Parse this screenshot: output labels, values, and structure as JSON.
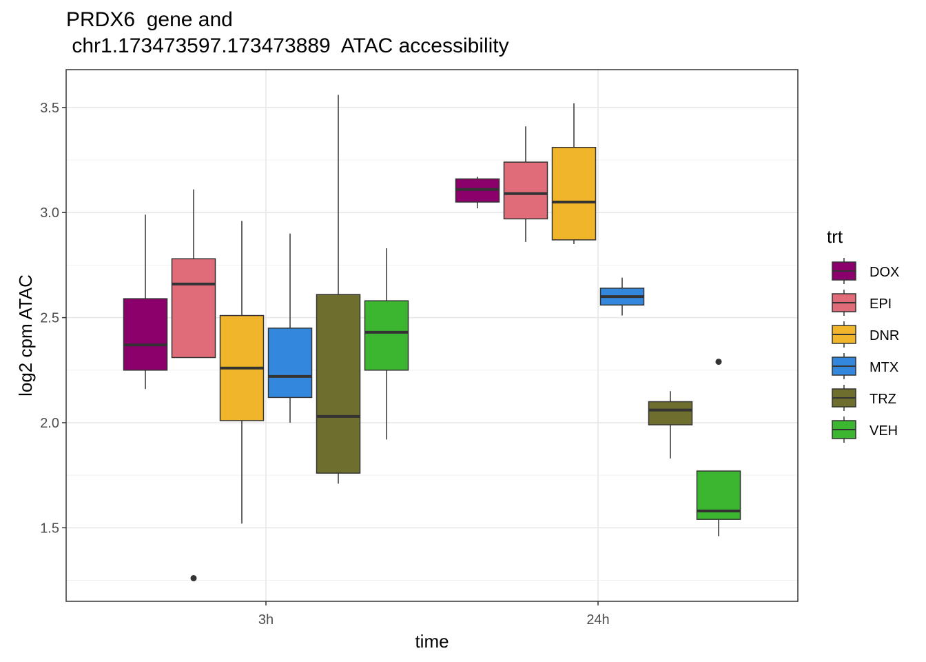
{
  "chart_data": {
    "type": "boxplot",
    "title_line1": "PRDX6  gene and",
    "title_line2": " chr1.173473597.173473889  ATAC accessibility",
    "xlabel": "time",
    "ylabel": "log2 cpm ATAC",
    "ylim": [
      1.15,
      3.68
    ],
    "y_ticks": [
      1.5,
      2.0,
      2.5,
      3.0,
      3.5
    ],
    "y_tick_labels": [
      "1.5",
      "2.0",
      "2.5",
      "3.0",
      "3.5"
    ],
    "categories": [
      "3h",
      "24h"
    ],
    "legend_title": "trt",
    "series": [
      {
        "name": "DOX",
        "color": "#8B006B",
        "boxes": [
          {
            "min": 2.16,
            "q1": 2.25,
            "median": 2.37,
            "q3": 2.59,
            "max": 2.99,
            "outliers": []
          },
          {
            "min": 3.02,
            "q1": 3.05,
            "median": 3.11,
            "q3": 3.16,
            "max": 3.17,
            "outliers": []
          }
        ]
      },
      {
        "name": "EPI",
        "color": "#E06C7A",
        "boxes": [
          {
            "min": 2.31,
            "q1": 2.31,
            "median": 2.66,
            "q3": 2.78,
            "max": 3.11,
            "outliers": [
              1.26
            ]
          },
          {
            "min": 2.86,
            "q1": 2.97,
            "median": 3.09,
            "q3": 3.24,
            "max": 3.41,
            "outliers": []
          }
        ]
      },
      {
        "name": "DNR",
        "color": "#F0B52A",
        "boxes": [
          {
            "min": 1.52,
            "q1": 2.01,
            "median": 2.26,
            "q3": 2.51,
            "max": 2.96,
            "outliers": []
          },
          {
            "min": 2.85,
            "q1": 2.87,
            "median": 3.05,
            "q3": 3.31,
            "max": 3.52,
            "outliers": []
          }
        ]
      },
      {
        "name": "MTX",
        "color": "#3388DD",
        "boxes": [
          {
            "min": 2.0,
            "q1": 2.12,
            "median": 2.22,
            "q3": 2.45,
            "max": 2.9,
            "outliers": []
          },
          {
            "min": 2.51,
            "q1": 2.56,
            "median": 2.6,
            "q3": 2.64,
            "max": 2.69,
            "outliers": []
          }
        ]
      },
      {
        "name": "TRZ",
        "color": "#6E6E2E",
        "boxes": [
          {
            "min": 1.71,
            "q1": 1.76,
            "median": 2.03,
            "q3": 2.61,
            "max": 3.56,
            "outliers": []
          },
          {
            "min": 1.83,
            "q1": 1.99,
            "median": 2.06,
            "q3": 2.1,
            "max": 2.15,
            "outliers": []
          }
        ]
      },
      {
        "name": "VEH",
        "color": "#3CB531",
        "boxes": [
          {
            "min": 1.92,
            "q1": 2.25,
            "median": 2.43,
            "q3": 2.58,
            "max": 2.83,
            "outliers": []
          },
          {
            "min": 1.46,
            "q1": 1.54,
            "median": 1.58,
            "q3": 1.77,
            "max": 1.77,
            "outliers": [
              2.29
            ]
          }
        ]
      }
    ]
  }
}
